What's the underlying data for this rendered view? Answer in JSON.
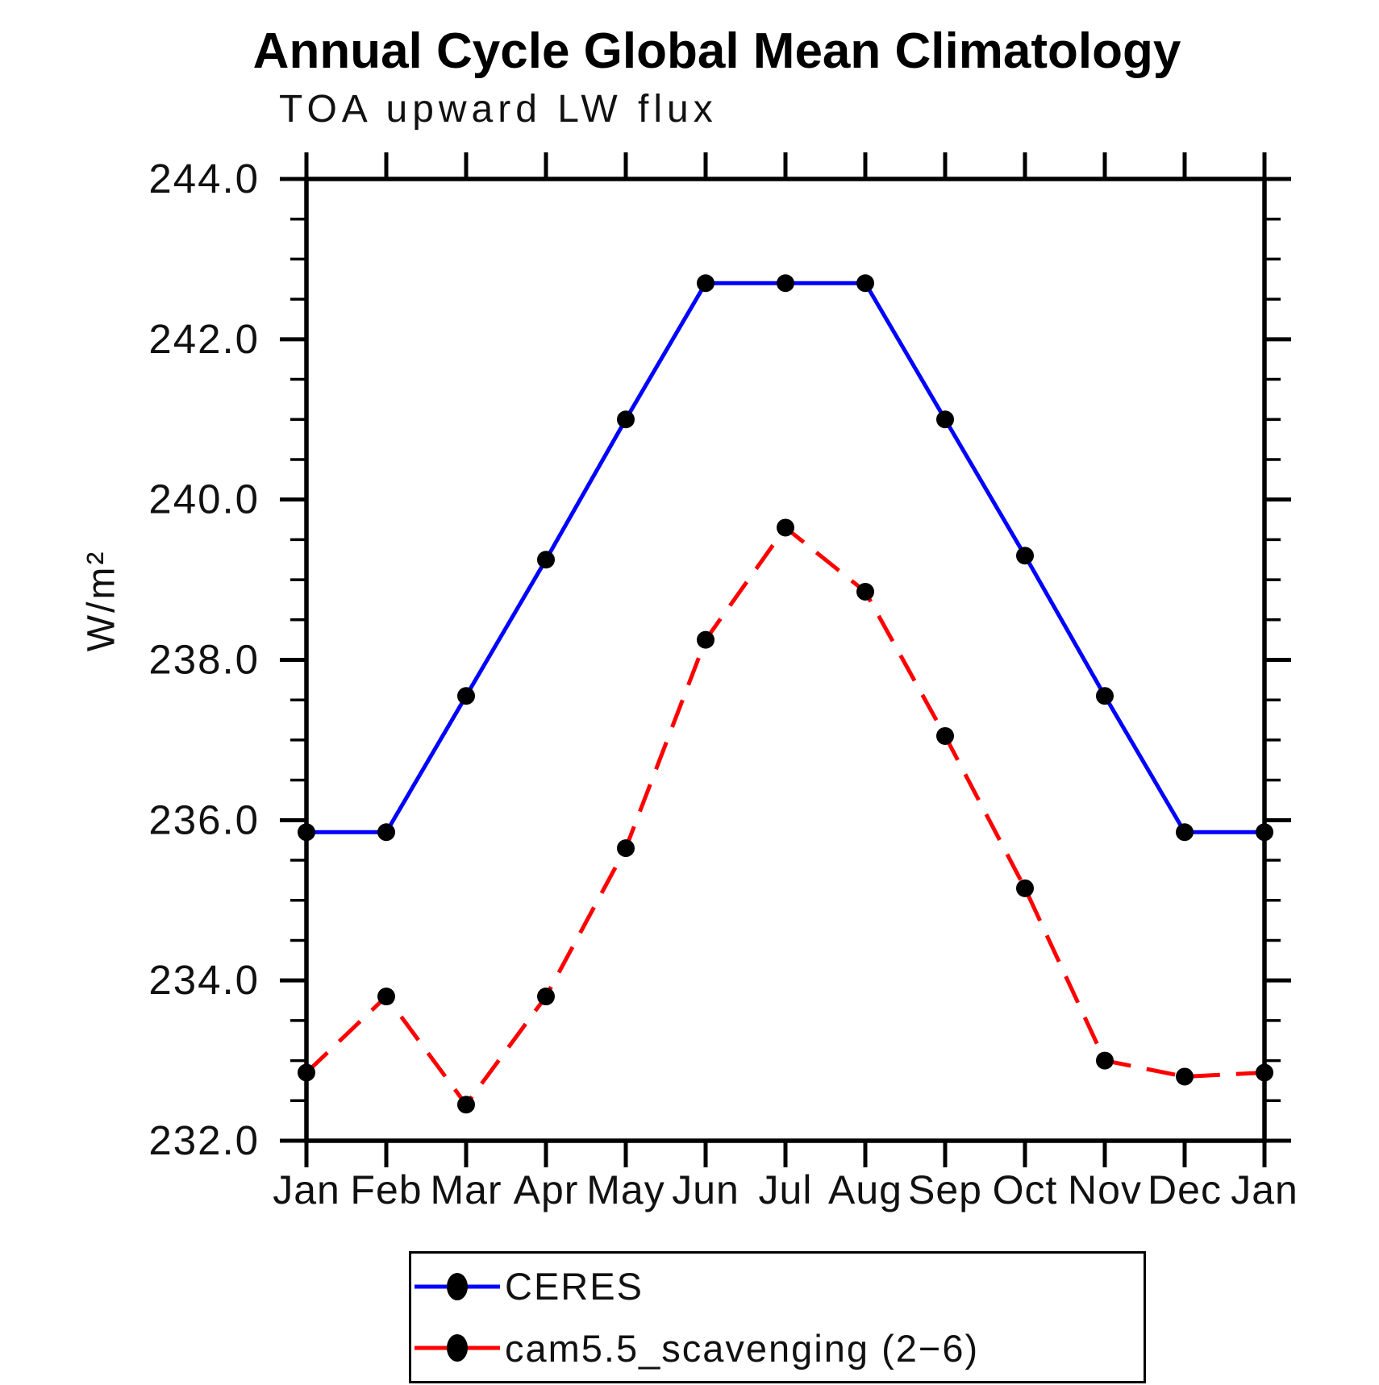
{
  "header": {
    "title": "Annual Cycle Global Mean Climatology",
    "subtitle": "TOA upward LW flux"
  },
  "chart_data": {
    "type": "line",
    "title": "Annual Cycle Global Mean Climatology",
    "subtitle": "TOA upward LW flux",
    "xlabel": "",
    "ylabel": "W/m²",
    "ylim": [
      232.0,
      244.0
    ],
    "ytick_major_step": 2.0,
    "ytick_minor_step": 0.5,
    "grid": false,
    "legend_position": "bottom-left-box",
    "categories": [
      "Jan",
      "Feb",
      "Mar",
      "Apr",
      "May",
      "Jun",
      "Jul",
      "Aug",
      "Sep",
      "Oct",
      "Nov",
      "Dec",
      "Jan"
    ],
    "yticks": [
      "244.0",
      "242.0",
      "240.0",
      "238.0",
      "236.0",
      "234.0",
      "232.0"
    ],
    "series": [
      {
        "name": "CERES",
        "color": "#0000ff",
        "line_style": "solid",
        "marker": "filled-circle",
        "marker_color": "#000000",
        "values": [
          235.85,
          235.85,
          237.55,
          239.25,
          241.0,
          242.7,
          242.7,
          242.7,
          241.0,
          239.3,
          237.55,
          235.85,
          235.85
        ]
      },
      {
        "name": "cam5.5_scavenging (2−6)",
        "color": "#ff0000",
        "line_style": "dashed",
        "marker": "filled-circle",
        "marker_color": "#000000",
        "values": [
          232.85,
          233.8,
          232.45,
          233.8,
          235.65,
          238.25,
          239.65,
          238.85,
          237.05,
          235.15,
          233.0,
          232.8,
          232.85
        ]
      }
    ]
  }
}
